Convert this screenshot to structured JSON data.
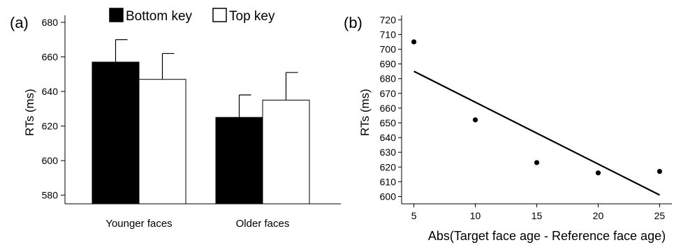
{
  "chart_data": [
    {
      "panel_label": "(a)",
      "type": "bar",
      "categories": [
        "Younger faces",
        "Older faces"
      ],
      "series": [
        {
          "name": "Bottom key",
          "values": [
            657,
            625
          ],
          "errors": [
            13,
            13
          ],
          "color": "#000000"
        },
        {
          "name": "Top key",
          "values": [
            647,
            635
          ],
          "errors": [
            15,
            16
          ],
          "color": "#ffffff"
        }
      ],
      "ylabel": "RTs (ms)",
      "xlabel": "",
      "ylim": [
        575,
        680
      ],
      "yticks": [
        580,
        600,
        620,
        640,
        660,
        680
      ],
      "legend": "top",
      "grid": false
    },
    {
      "panel_label": "(b)",
      "type": "scatter",
      "x": [
        5,
        10,
        15,
        20,
        25
      ],
      "y": [
        705,
        652,
        623,
        616,
        617
      ],
      "trendline": {
        "x": [
          5,
          25
        ],
        "y": [
          685,
          601
        ]
      },
      "xlabel": "Abs(Target face age - Reference face age)",
      "ylabel": "RTs (ms)",
      "xlim": [
        4,
        26
      ],
      "ylim": [
        595,
        723
      ],
      "xticks": [
        5,
        10,
        15,
        20,
        25
      ],
      "yticks": [
        600,
        610,
        620,
        630,
        640,
        650,
        660,
        670,
        680,
        690,
        700,
        710,
        720
      ],
      "grid": false
    }
  ]
}
